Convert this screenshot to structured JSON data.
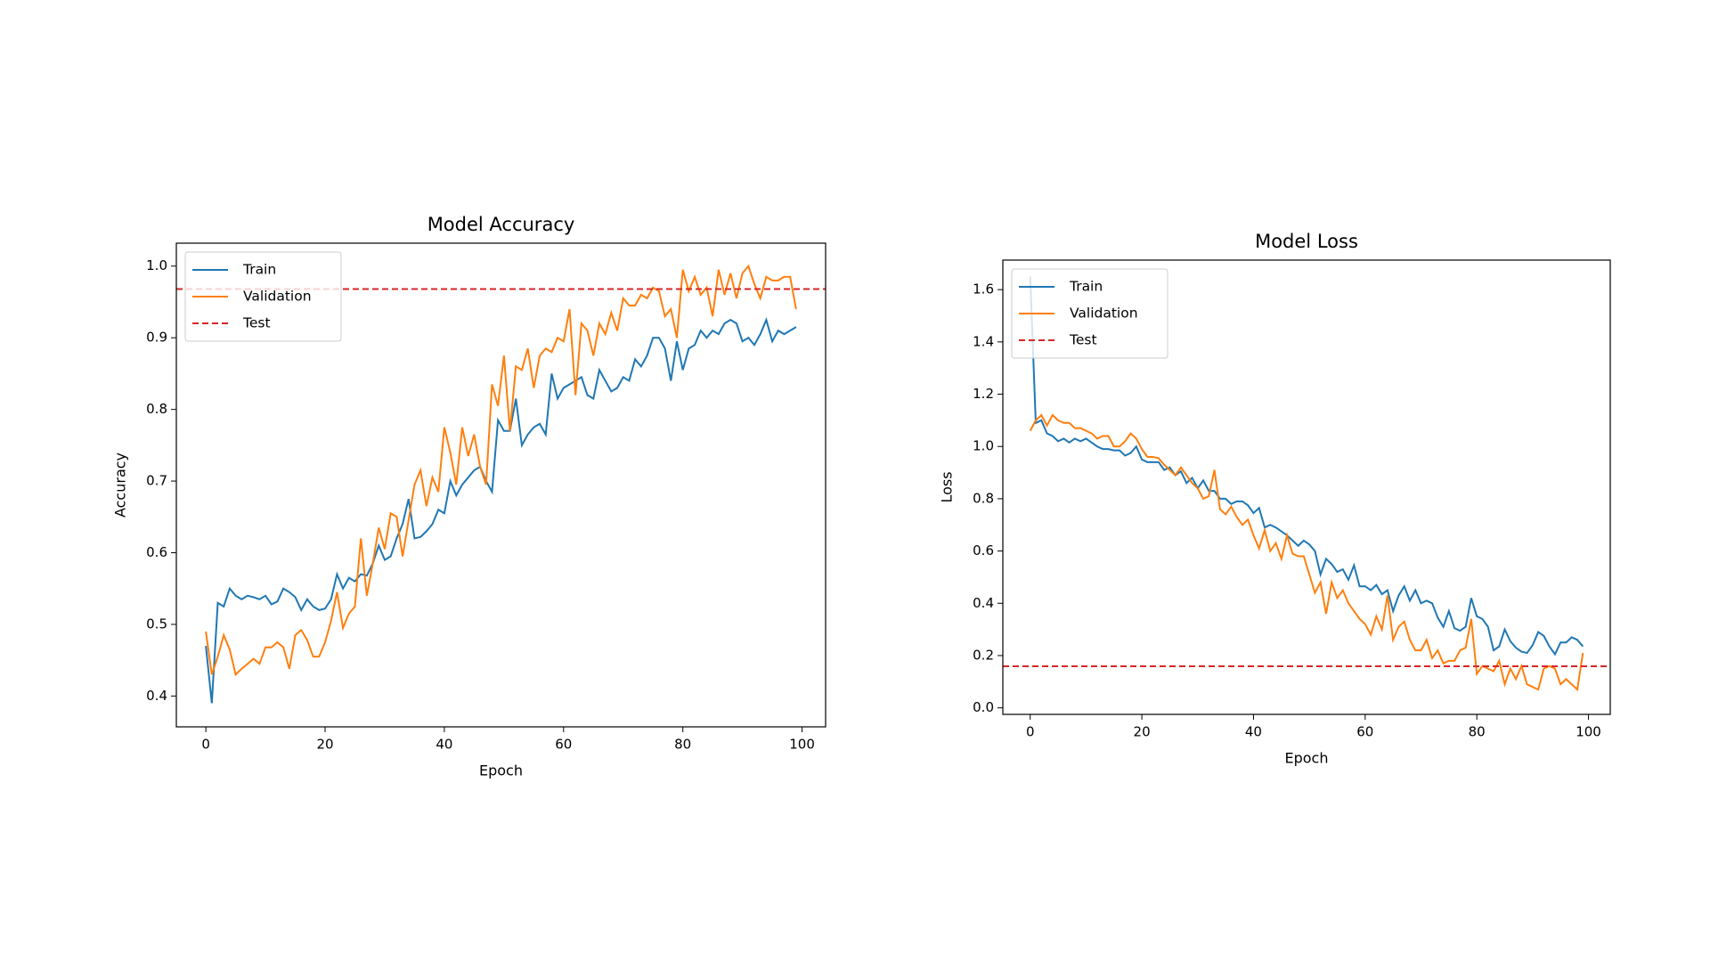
{
  "chart_data": [
    {
      "type": "line",
      "title": "Model Accuracy",
      "xlabel": "Epoch",
      "ylabel": "Accuracy",
      "x": [
        0,
        1,
        2,
        3,
        4,
        5,
        6,
        7,
        8,
        9,
        10,
        11,
        12,
        13,
        14,
        15,
        16,
        17,
        18,
        19,
        20,
        21,
        22,
        23,
        24,
        25,
        26,
        27,
        28,
        29,
        30,
        31,
        32,
        33,
        34,
        35,
        36,
        37,
        38,
        39,
        40,
        41,
        42,
        43,
        44,
        45,
        46,
        47,
        48,
        49,
        50,
        51,
        52,
        53,
        54,
        55,
        56,
        57,
        58,
        59,
        60,
        61,
        62,
        63,
        64,
        65,
        66,
        67,
        68,
        69,
        70,
        71,
        72,
        73,
        74,
        75,
        76,
        77,
        78,
        79,
        80,
        81,
        82,
        83,
        84,
        85,
        86,
        87,
        88,
        89,
        90,
        91,
        92,
        93,
        94,
        95,
        96,
        97,
        98,
        99
      ],
      "series": [
        {
          "name": "Train",
          "color": "#1f77b4",
          "values": [
            0.47,
            0.39,
            0.53,
            0.525,
            0.55,
            0.54,
            0.535,
            0.54,
            0.538,
            0.535,
            0.54,
            0.528,
            0.532,
            0.55,
            0.545,
            0.538,
            0.52,
            0.535,
            0.525,
            0.52,
            0.522,
            0.535,
            0.57,
            0.55,
            0.565,
            0.56,
            0.57,
            0.568,
            0.585,
            0.61,
            0.59,
            0.595,
            0.62,
            0.64,
            0.675,
            0.62,
            0.622,
            0.63,
            0.64,
            0.66,
            0.655,
            0.7,
            0.68,
            0.695,
            0.705,
            0.715,
            0.72,
            0.7,
            0.685,
            0.785,
            0.77,
            0.77,
            0.815,
            0.75,
            0.765,
            0.775,
            0.78,
            0.765,
            0.85,
            0.815,
            0.83,
            0.835,
            0.84,
            0.845,
            0.82,
            0.815,
            0.855,
            0.84,
            0.825,
            0.83,
            0.845,
            0.84,
            0.87,
            0.86,
            0.875,
            0.9,
            0.9,
            0.885,
            0.84,
            0.895,
            0.855,
            0.885,
            0.89,
            0.91,
            0.9,
            0.91,
            0.905,
            0.92,
            0.925,
            0.92,
            0.895,
            0.9,
            0.89,
            0.905,
            0.925,
            0.895,
            0.91,
            0.905,
            0.91,
            0.915
          ]
        },
        {
          "name": "Validation",
          "color": "#ff7f0e",
          "values": [
            0.49,
            0.43,
            0.455,
            0.485,
            0.465,
            0.43,
            0.438,
            0.445,
            0.452,
            0.445,
            0.468,
            0.468,
            0.475,
            0.468,
            0.438,
            0.485,
            0.492,
            0.478,
            0.455,
            0.455,
            0.475,
            0.505,
            0.545,
            0.495,
            0.515,
            0.525,
            0.62,
            0.54,
            0.585,
            0.635,
            0.605,
            0.655,
            0.65,
            0.595,
            0.645,
            0.695,
            0.715,
            0.665,
            0.705,
            0.685,
            0.775,
            0.74,
            0.695,
            0.775,
            0.735,
            0.765,
            0.72,
            0.695,
            0.835,
            0.805,
            0.875,
            0.77,
            0.86,
            0.855,
            0.885,
            0.83,
            0.875,
            0.885,
            0.88,
            0.9,
            0.895,
            0.94,
            0.82,
            0.92,
            0.91,
            0.875,
            0.92,
            0.905,
            0.935,
            0.91,
            0.955,
            0.945,
            0.945,
            0.96,
            0.955,
            0.97,
            0.965,
            0.93,
            0.94,
            0.9,
            0.995,
            0.965,
            0.985,
            0.96,
            0.97,
            0.93,
            0.995,
            0.96,
            0.99,
            0.955,
            0.99,
            1.0,
            0.975,
            0.955,
            0.985,
            0.98,
            0.98,
            0.985,
            0.985,
            0.94
          ]
        }
      ],
      "hlines": [
        {
          "name": "Test",
          "color": "#d62728",
          "value": 0.968,
          "linestyle": "dashed"
        }
      ],
      "xlim": [
        -4.95,
        103.95
      ],
      "xticks": [
        0,
        20,
        40,
        60,
        80,
        100
      ],
      "ylim": [
        0.357,
        1.032
      ],
      "yticks": [
        0.4,
        0.5,
        0.6,
        0.7,
        0.8,
        0.9,
        {
          "value": 1.0,
          "label": "1.0"
        }
      ],
      "legend": "upper left",
      "grid": false
    },
    {
      "type": "line",
      "title": "Model Loss",
      "xlabel": "Epoch",
      "ylabel": "Loss",
      "x": [
        0,
        1,
        2,
        3,
        4,
        5,
        6,
        7,
        8,
        9,
        10,
        11,
        12,
        13,
        14,
        15,
        16,
        17,
        18,
        19,
        20,
        21,
        22,
        23,
        24,
        25,
        26,
        27,
        28,
        29,
        30,
        31,
        32,
        33,
        34,
        35,
        36,
        37,
        38,
        39,
        40,
        41,
        42,
        43,
        44,
        45,
        46,
        47,
        48,
        49,
        50,
        51,
        52,
        53,
        54,
        55,
        56,
        57,
        58,
        59,
        60,
        61,
        62,
        63,
        64,
        65,
        66,
        67,
        68,
        69,
        70,
        71,
        72,
        73,
        74,
        75,
        76,
        77,
        78,
        79,
        80,
        81,
        82,
        83,
        84,
        85,
        86,
        87,
        88,
        89,
        90,
        91,
        92,
        93,
        94,
        95,
        96,
        97,
        98,
        99
      ],
      "series": [
        {
          "name": "Train",
          "color": "#1f77b4",
          "values": [
            1.65,
            1.09,
            1.1,
            1.05,
            1.04,
            1.02,
            1.03,
            1.015,
            1.03,
            1.02,
            1.03,
            1.015,
            1.0,
            0.99,
            0.99,
            0.985,
            0.985,
            0.965,
            0.975,
            1.0,
            0.95,
            0.94,
            0.94,
            0.94,
            0.91,
            0.92,
            0.89,
            0.905,
            0.86,
            0.88,
            0.84,
            0.87,
            0.83,
            0.83,
            0.8,
            0.8,
            0.78,
            0.79,
            0.79,
            0.775,
            0.745,
            0.765,
            0.69,
            0.7,
            0.69,
            0.675,
            0.66,
            0.64,
            0.62,
            0.64,
            0.625,
            0.6,
            0.51,
            0.57,
            0.55,
            0.52,
            0.53,
            0.49,
            0.545,
            0.465,
            0.465,
            0.45,
            0.47,
            0.435,
            0.45,
            0.37,
            0.43,
            0.465,
            0.41,
            0.45,
            0.4,
            0.41,
            0.4,
            0.345,
            0.31,
            0.37,
            0.305,
            0.295,
            0.31,
            0.42,
            0.35,
            0.34,
            0.31,
            0.22,
            0.235,
            0.3,
            0.255,
            0.23,
            0.215,
            0.21,
            0.24,
            0.29,
            0.275,
            0.235,
            0.205,
            0.25,
            0.25,
            0.27,
            0.26,
            0.235
          ]
        },
        {
          "name": "Validation",
          "color": "#ff7f0e",
          "values": [
            1.06,
            1.1,
            1.12,
            1.08,
            1.12,
            1.1,
            1.09,
            1.09,
            1.07,
            1.07,
            1.06,
            1.05,
            1.03,
            1.04,
            1.04,
            1.0,
            1.0,
            1.02,
            1.05,
            1.03,
            0.99,
            0.96,
            0.96,
            0.955,
            0.93,
            0.91,
            0.89,
            0.92,
            0.89,
            0.86,
            0.84,
            0.8,
            0.81,
            0.91,
            0.76,
            0.74,
            0.77,
            0.73,
            0.7,
            0.72,
            0.66,
            0.61,
            0.68,
            0.6,
            0.63,
            0.57,
            0.66,
            0.59,
            0.58,
            0.58,
            0.51,
            0.44,
            0.48,
            0.36,
            0.48,
            0.42,
            0.45,
            0.4,
            0.37,
            0.34,
            0.32,
            0.28,
            0.35,
            0.3,
            0.43,
            0.26,
            0.31,
            0.33,
            0.26,
            0.22,
            0.22,
            0.26,
            0.19,
            0.22,
            0.17,
            0.18,
            0.18,
            0.22,
            0.23,
            0.34,
            0.13,
            0.16,
            0.15,
            0.14,
            0.18,
            0.09,
            0.15,
            0.11,
            0.16,
            0.09,
            0.08,
            0.07,
            0.15,
            0.16,
            0.15,
            0.09,
            0.11,
            0.09,
            0.07,
            0.21
          ]
        }
      ],
      "hlines": [
        {
          "name": "Test",
          "color": "#d62728",
          "value": 0.159,
          "linestyle": "dashed"
        }
      ],
      "xlim": [
        -4.9,
        103.9
      ],
      "xticks": [
        0,
        20,
        40,
        60,
        80,
        100
      ],
      "ylim": [
        -0.025,
        1.713
      ],
      "yticks": [
        {
          "value": 0.0,
          "label": "0.0"
        },
        0.2,
        0.4,
        0.6,
        0.8,
        {
          "value": 1.0,
          "label": "1.0"
        },
        1.2,
        1.4,
        1.6
      ],
      "legend": "upper left",
      "grid": false
    }
  ]
}
